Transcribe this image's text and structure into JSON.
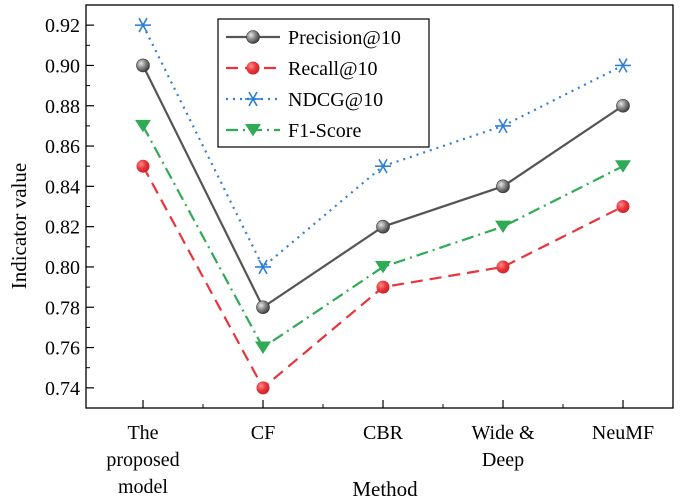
{
  "chart_data": {
    "type": "line",
    "title": "",
    "xlabel": "Method",
    "ylabel": "Indicator value",
    "ylim": [
      0.73,
      0.93
    ],
    "yticks": [
      0.74,
      0.76,
      0.78,
      0.8,
      0.82,
      0.84,
      0.86,
      0.88,
      0.9,
      0.92
    ],
    "ytick_labels": [
      "0.74",
      "0.76",
      "0.78",
      "0.80",
      "0.82",
      "0.84",
      "0.86",
      "0.88",
      "0.90",
      "0.92"
    ],
    "categories": [
      [
        "The",
        "proposed",
        "model"
      ],
      [
        "CF"
      ],
      [
        "CBR"
      ],
      [
        "Wide &",
        "Deep"
      ],
      [
        "NeuMF"
      ]
    ],
    "legend_position": "top-center",
    "grid": false,
    "series": [
      {
        "name": "Precision@10",
        "values": [
          0.9,
          0.78,
          0.82,
          0.84,
          0.88
        ],
        "color": "#555555",
        "marker": "sphere",
        "line_style": "solid"
      },
      {
        "name": "Recall@10",
        "values": [
          0.85,
          0.74,
          0.79,
          0.8,
          0.83
        ],
        "color": "#e8343a",
        "marker": "circle",
        "line_style": "dashed"
      },
      {
        "name": "NDCG@10",
        "values": [
          0.92,
          0.8,
          0.85,
          0.87,
          0.9
        ],
        "color": "#2f7fd6",
        "marker": "asterisk",
        "line_style": "dotted"
      },
      {
        "name": "F1-Score",
        "values": [
          0.87,
          0.76,
          0.8,
          0.82,
          0.85
        ],
        "color": "#2faa55",
        "marker": "triangle-down",
        "line_style": "dash-dot"
      }
    ]
  }
}
